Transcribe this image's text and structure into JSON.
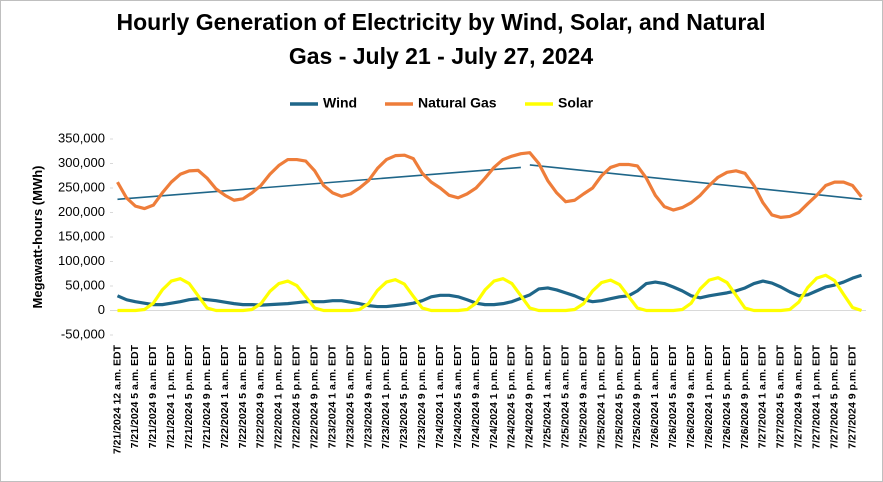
{
  "chart_data": {
    "type": "line",
    "title": "Hourly Generation of Electricity by Wind, Solar, and Natural",
    "subtitle": "Gas - July 21 - July 27, 2024",
    "y_label": "Megawatt-hours (MWh)",
    "legend": "top",
    "ylim": [
      -50000,
      350000
    ],
    "yticks": [
      {
        "value": -50000,
        "label": "-50,000"
      },
      0,
      {
        "value": 50000,
        "label": "50,000"
      },
      {
        "value": 100000,
        "label": "100,000"
      },
      {
        "value": 150000,
        "label": "150,000"
      },
      {
        "value": 200000,
        "label": "200,000"
      },
      {
        "value": 250000,
        "label": "250,000"
      },
      {
        "value": 300000,
        "label": "300,000"
      },
      {
        "value": 350000,
        "label": "350,000"
      }
    ],
    "categories": [
      "7/21/2024 12 a.m. EDT",
      null,
      "7/21/2024 5 a.m. EDT",
      null,
      "7/21/2024 9 a.m. EDT",
      null,
      "7/21/2024 1 p.m. EDT",
      null,
      "7/21/2024 5 p.m. EDT",
      null,
      "7/21/2024 9 p.m. EDT",
      null,
      "7/22/2024 1 a.m. EDT",
      null,
      "7/22/2024 5 a.m. EDT",
      null,
      "7/22/2024 9 a.m. EDT",
      null,
      "7/22/2024 1 p.m. EDT",
      null,
      "7/22/2024 5 p.m. EDT",
      null,
      "7/22/2024 9 p.m. EDT",
      null,
      "7/23/2024 1 a.m. EDT",
      null,
      "7/23/2024 5 a.m. EDT",
      null,
      "7/23/2024 9 a.m. EDT",
      null,
      "7/23/2024 1 p.m. EDT",
      null,
      "7/23/2024 5 p.m. EDT",
      null,
      "7/23/2024 9 p.m. EDT",
      null,
      "7/24/2024 1 a.m. EDT",
      null,
      "7/24/2024 5 a.m. EDT",
      null,
      "7/24/2024 9 a.m. EDT",
      null,
      "7/24/2024 1 p.m. EDT",
      null,
      "7/24/2024 5 p.m. EDT",
      null,
      "7/24/2024 9 p.m. EDT",
      null,
      "7/25/2024 1 a.m. EDT",
      null,
      "7/25/2024 5 a.m. EDT",
      null,
      "7/25/2024 9 a.m. EDT",
      null,
      "7/25/2024 1 p.m. EDT",
      null,
      "7/25/2024 5 p.m. EDT",
      null,
      "7/25/2024 9 p.m. EDT",
      null,
      "7/26/2024 1 a.m. EDT",
      null,
      "7/26/2024 5 a.m. EDT",
      null,
      "7/26/2024 9 a.m. EDT",
      null,
      "7/26/2024 1 p.m. EDT",
      null,
      "7/26/2024 5 p.m. EDT",
      null,
      "7/26/2024 9 p.m. EDT",
      null,
      "7/27/2024 1 a.m. EDT",
      null,
      "7/27/2024 5 a.m. EDT",
      null,
      "7/27/2024 9 a.m. EDT",
      null,
      "7/27/2024 1 p.m. EDT",
      null,
      "7/27/2024 5 p.m. EDT",
      null,
      "7/27/2024 9 p.m. EDT",
      null
    ],
    "series": [
      {
        "name": "Wind",
        "color": "#1f6689",
        "values": [
          30000,
          22000,
          18000,
          15000,
          12000,
          12000,
          15000,
          18000,
          22000,
          24000,
          22000,
          20000,
          17000,
          14000,
          12000,
          12000,
          11000,
          12000,
          13000,
          14000,
          16000,
          18000,
          18000,
          18000,
          20000,
          20000,
          17000,
          14000,
          10000,
          8000,
          8000,
          10000,
          12000,
          15000,
          20000,
          28000,
          31000,
          31000,
          28000,
          22000,
          15000,
          12000,
          12000,
          14000,
          18000,
          25000,
          32000,
          44000,
          46000,
          42000,
          36000,
          30000,
          22000,
          18000,
          20000,
          24000,
          28000,
          30000,
          40000,
          55000,
          58000,
          55000,
          48000,
          40000,
          30000,
          26000,
          30000,
          33000,
          36000,
          40000,
          46000,
          55000,
          60000,
          56000,
          48000,
          38000,
          30000,
          32000,
          40000,
          48000,
          52000,
          58000,
          66000,
          72000
        ]
      },
      {
        "name": "Natural Gas",
        "color": "#ee7d3a",
        "values": [
          262000,
          230000,
          213000,
          208000,
          215000,
          240000,
          262000,
          278000,
          285000,
          286000,
          270000,
          248000,
          235000,
          225000,
          228000,
          240000,
          255000,
          278000,
          296000,
          308000,
          308000,
          305000,
          285000,
          255000,
          240000,
          233000,
          238000,
          250000,
          265000,
          290000,
          308000,
          316000,
          317000,
          310000,
          280000,
          262000,
          250000,
          235000,
          230000,
          238000,
          250000,
          270000,
          292000,
          308000,
          315000,
          320000,
          322000,
          300000,
          265000,
          240000,
          222000,
          225000,
          238000,
          250000,
          275000,
          292000,
          298000,
          298000,
          295000,
          270000,
          235000,
          212000,
          205000,
          210000,
          220000,
          235000,
          255000,
          272000,
          282000,
          285000,
          280000,
          255000,
          220000,
          195000,
          190000,
          192000,
          200000,
          218000,
          235000,
          255000,
          262000,
          262000,
          255000,
          232000
        ]
      },
      {
        "name": "Solar",
        "color": "#ffff00",
        "values": [
          0,
          0,
          0,
          2000,
          15000,
          42000,
          60000,
          65000,
          55000,
          30000,
          5000,
          0,
          0,
          0,
          0,
          2000,
          14000,
          39000,
          55000,
          60000,
          51000,
          28000,
          5000,
          0,
          0,
          0,
          0,
          2000,
          14000,
          41000,
          58000,
          63000,
          54000,
          29000,
          5000,
          0,
          0,
          0,
          0,
          2000,
          15000,
          42000,
          60000,
          65000,
          55000,
          30000,
          5000,
          0,
          0,
          0,
          0,
          2000,
          14000,
          40000,
          57000,
          62000,
          53000,
          29000,
          5000,
          0,
          0,
          0,
          0,
          2000,
          15000,
          44000,
          62000,
          67000,
          57000,
          31000,
          5000,
          0,
          0,
          0,
          0,
          2000,
          17000,
          47000,
          66000,
          72000,
          61000,
          33000,
          6000,
          0
        ]
      }
    ],
    "trendlines": [
      {
        "color": "#1f6689",
        "start_index": 0,
        "end_index": 45,
        "start": 227000,
        "end": 292000
      },
      {
        "color": "#1f6689",
        "start_index": 46,
        "end_index": 83,
        "start": 297000,
        "end": 227000
      }
    ]
  }
}
